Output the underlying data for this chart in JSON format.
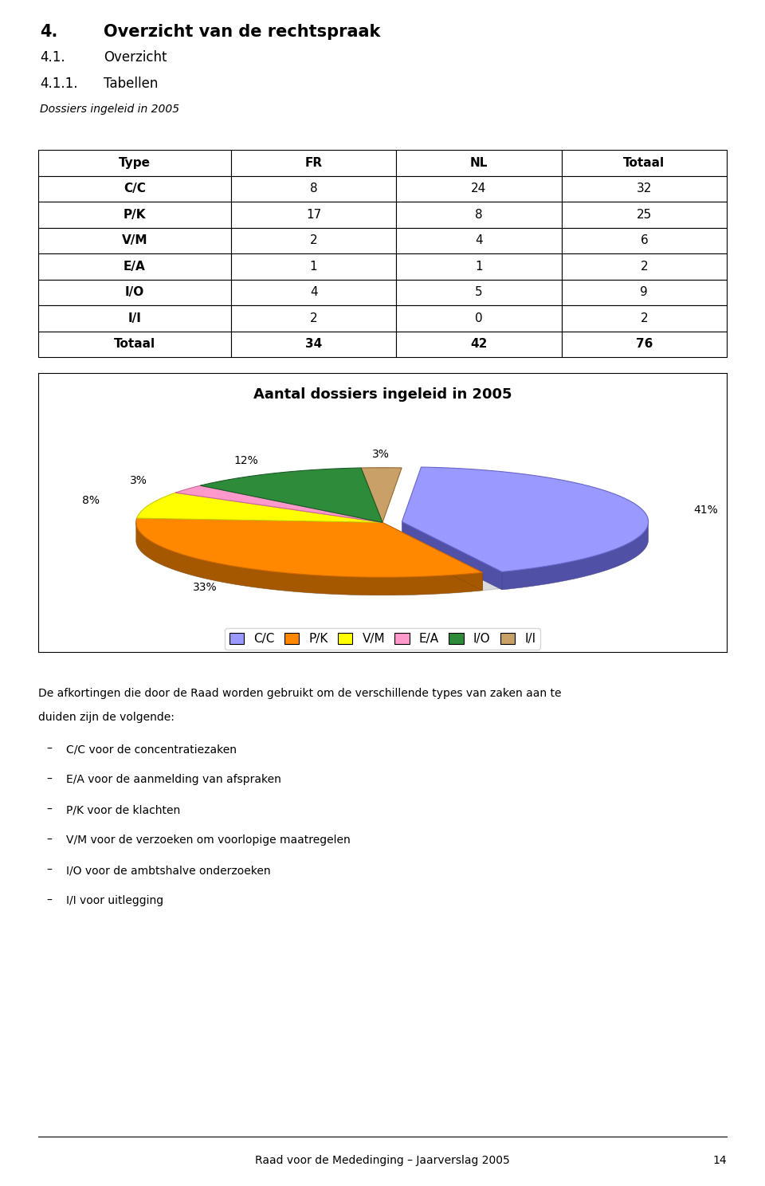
{
  "title_main_num": "4.",
  "title_main_text": "Overzicht van de rechtspraak",
  "subtitle1_num": "4.1.",
  "subtitle1_text": "Overzicht",
  "subtitle2_num": "4.1.1.",
  "subtitle2_text": "Tabellen",
  "table_caption": "Dossiers ingeleid in 2005",
  "table_headers": [
    "Type",
    "FR",
    "NL",
    "Totaal"
  ],
  "table_rows": [
    [
      "C/C",
      "8",
      "24",
      "32"
    ],
    [
      "P/K",
      "17",
      "8",
      "25"
    ],
    [
      "V/M",
      "2",
      "4",
      "6"
    ],
    [
      "E/A",
      "1",
      "1",
      "2"
    ],
    [
      "I/O",
      "4",
      "5",
      "9"
    ],
    [
      "I/I",
      "2",
      "0",
      "2"
    ],
    [
      "Totaal",
      "34",
      "42",
      "76"
    ]
  ],
  "pie_title": "Aantal dossiers ingeleid in 2005",
  "pie_labels": [
    "C/C",
    "P/K",
    "V/M",
    "E/A",
    "I/O",
    "I/I"
  ],
  "pie_values": [
    32,
    25,
    6,
    2,
    9,
    2
  ],
  "pie_colors": [
    "#9999FF",
    "#FF8800",
    "#FFFF00",
    "#FF99CC",
    "#2E8B3A",
    "#C8A068"
  ],
  "pie_edge_colors": [
    "#6666CC",
    "#CC6600",
    "#CCCC00",
    "#CC6699",
    "#1A5C26",
    "#996633"
  ],
  "pie_explode_idx": 1,
  "legend_labels": [
    "C/C",
    "P/K",
    "V/M",
    "E/A",
    "I/O",
    "I/I"
  ],
  "body_text_line1": "De afkortingen die door de Raad worden gebruikt om de verschillende types van zaken aan te",
  "body_text_line2": "duiden zijn de volgende:",
  "bullet_items": [
    "C/C voor de concentratiezaken",
    "E/A voor de aanmelding van afspraken",
    "P/K voor de klachten",
    "V/M voor de verzoeken om voorlopige maatregelen",
    "I/O voor de ambtshalve onderzoeken",
    "I/I voor uitlegging"
  ],
  "footer_text": "Raad voor de Mededinging – Jaarverslag 2005",
  "footer_page": "14",
  "bg_color": "#FFFFFF"
}
